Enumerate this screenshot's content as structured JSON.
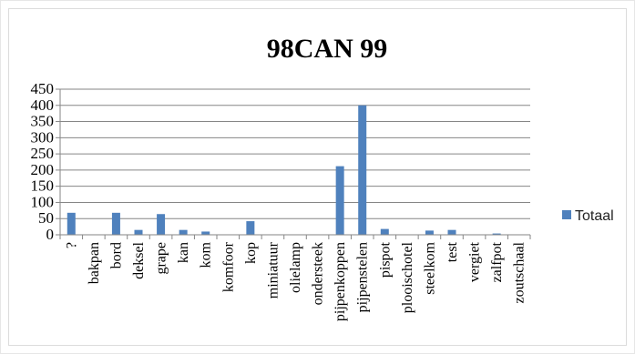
{
  "chart_data": {
    "type": "bar",
    "title": "98CAN 99",
    "categories": [
      "?",
      "bakpan",
      "bord",
      "deksel",
      "grape",
      "kan",
      "kom",
      "komfoor",
      "kop",
      "miniatuur",
      "olielamp",
      "ondersteek",
      "pijpenkoppen",
      "pijpenstelen",
      "pispot",
      "plooischotel",
      "steelkom",
      "test",
      "vergiet",
      "zalfpot",
      "zoutschaal"
    ],
    "series": [
      {
        "name": "Totaal",
        "values": [
          68,
          0,
          68,
          15,
          64,
          15,
          10,
          0,
          42,
          0,
          0,
          0,
          212,
          400,
          18,
          0,
          13,
          15,
          0,
          4,
          0
        ]
      }
    ],
    "ylim": [
      0,
      450
    ],
    "yticks": [
      "0",
      "50",
      "100",
      "150",
      "200",
      "250",
      "300",
      "350",
      "400",
      "450"
    ],
    "grid": true,
    "legend_position": "right",
    "colors": {
      "bar": "#4f81bd",
      "grid": "#868686",
      "axis": "#868686",
      "text": "#000000"
    }
  }
}
